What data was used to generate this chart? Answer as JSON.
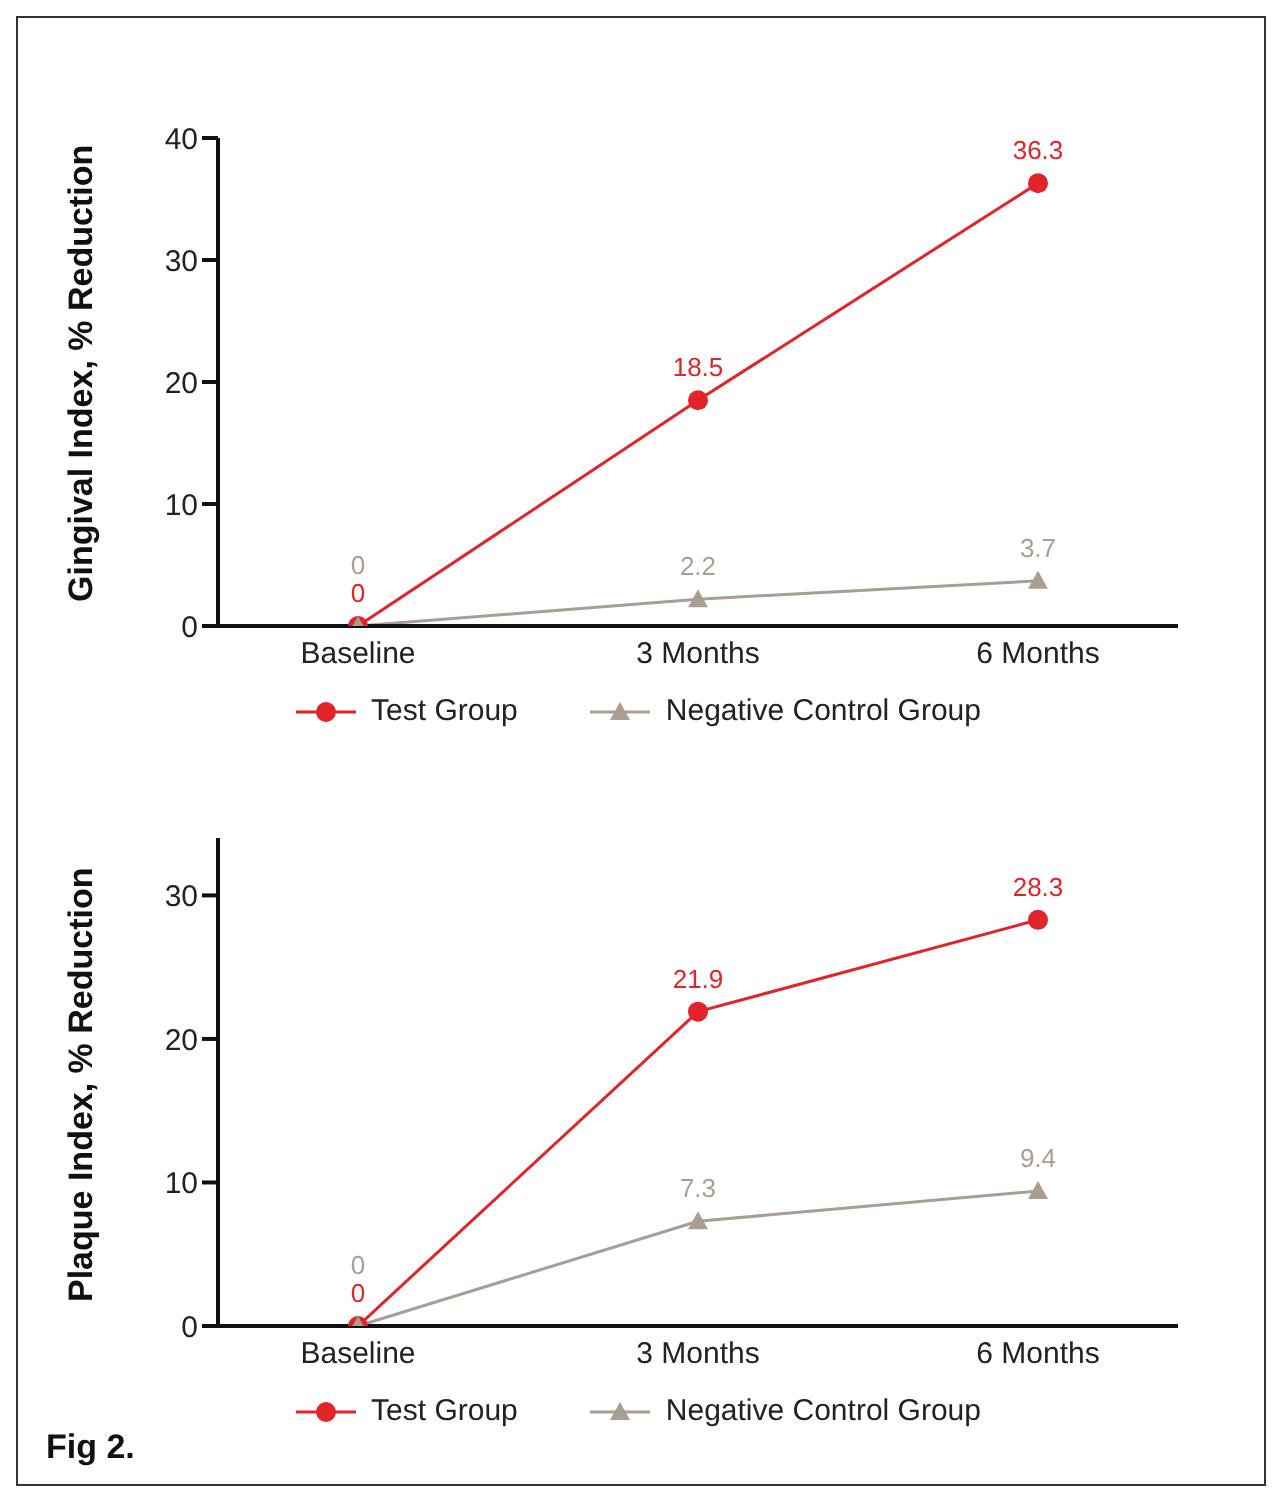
{
  "chart_data": [
    {
      "type": "line",
      "ylabel": "Gingival Index, % Reduction",
      "categories": [
        "Baseline",
        "3 Months",
        "6 Months"
      ],
      "series": [
        {
          "name": "Test Group",
          "color": "#e2232a",
          "marker": "circle",
          "values": [
            0,
            18.5,
            36.3
          ]
        },
        {
          "name": "Negative Control Group",
          "color": "#aa9e93",
          "marker": "triangle",
          "values": [
            0,
            2.2,
            3.7
          ]
        }
      ],
      "ylim": [
        0,
        40
      ],
      "yticks": [
        0,
        10,
        20,
        30,
        40
      ],
      "grid": false,
      "legend": "bottom",
      "data_labels": true
    },
    {
      "type": "line",
      "ylabel": "Plaque Index, % Reduction",
      "categories": [
        "Baseline",
        "3 Months",
        "6 Months"
      ],
      "series": [
        {
          "name": "Test Group",
          "color": "#e2232a",
          "marker": "circle",
          "values": [
            0,
            21.9,
            28.3
          ]
        },
        {
          "name": "Negative Control Group",
          "color": "#aa9e93",
          "marker": "triangle",
          "values": [
            0,
            7.3,
            9.4
          ]
        }
      ],
      "ylim": [
        0,
        34
      ],
      "yticks": [
        0,
        10,
        20,
        30
      ],
      "grid": false,
      "legend": "bottom",
      "data_labels": true,
      "annotations": [
        "Fig 2."
      ]
    }
  ]
}
